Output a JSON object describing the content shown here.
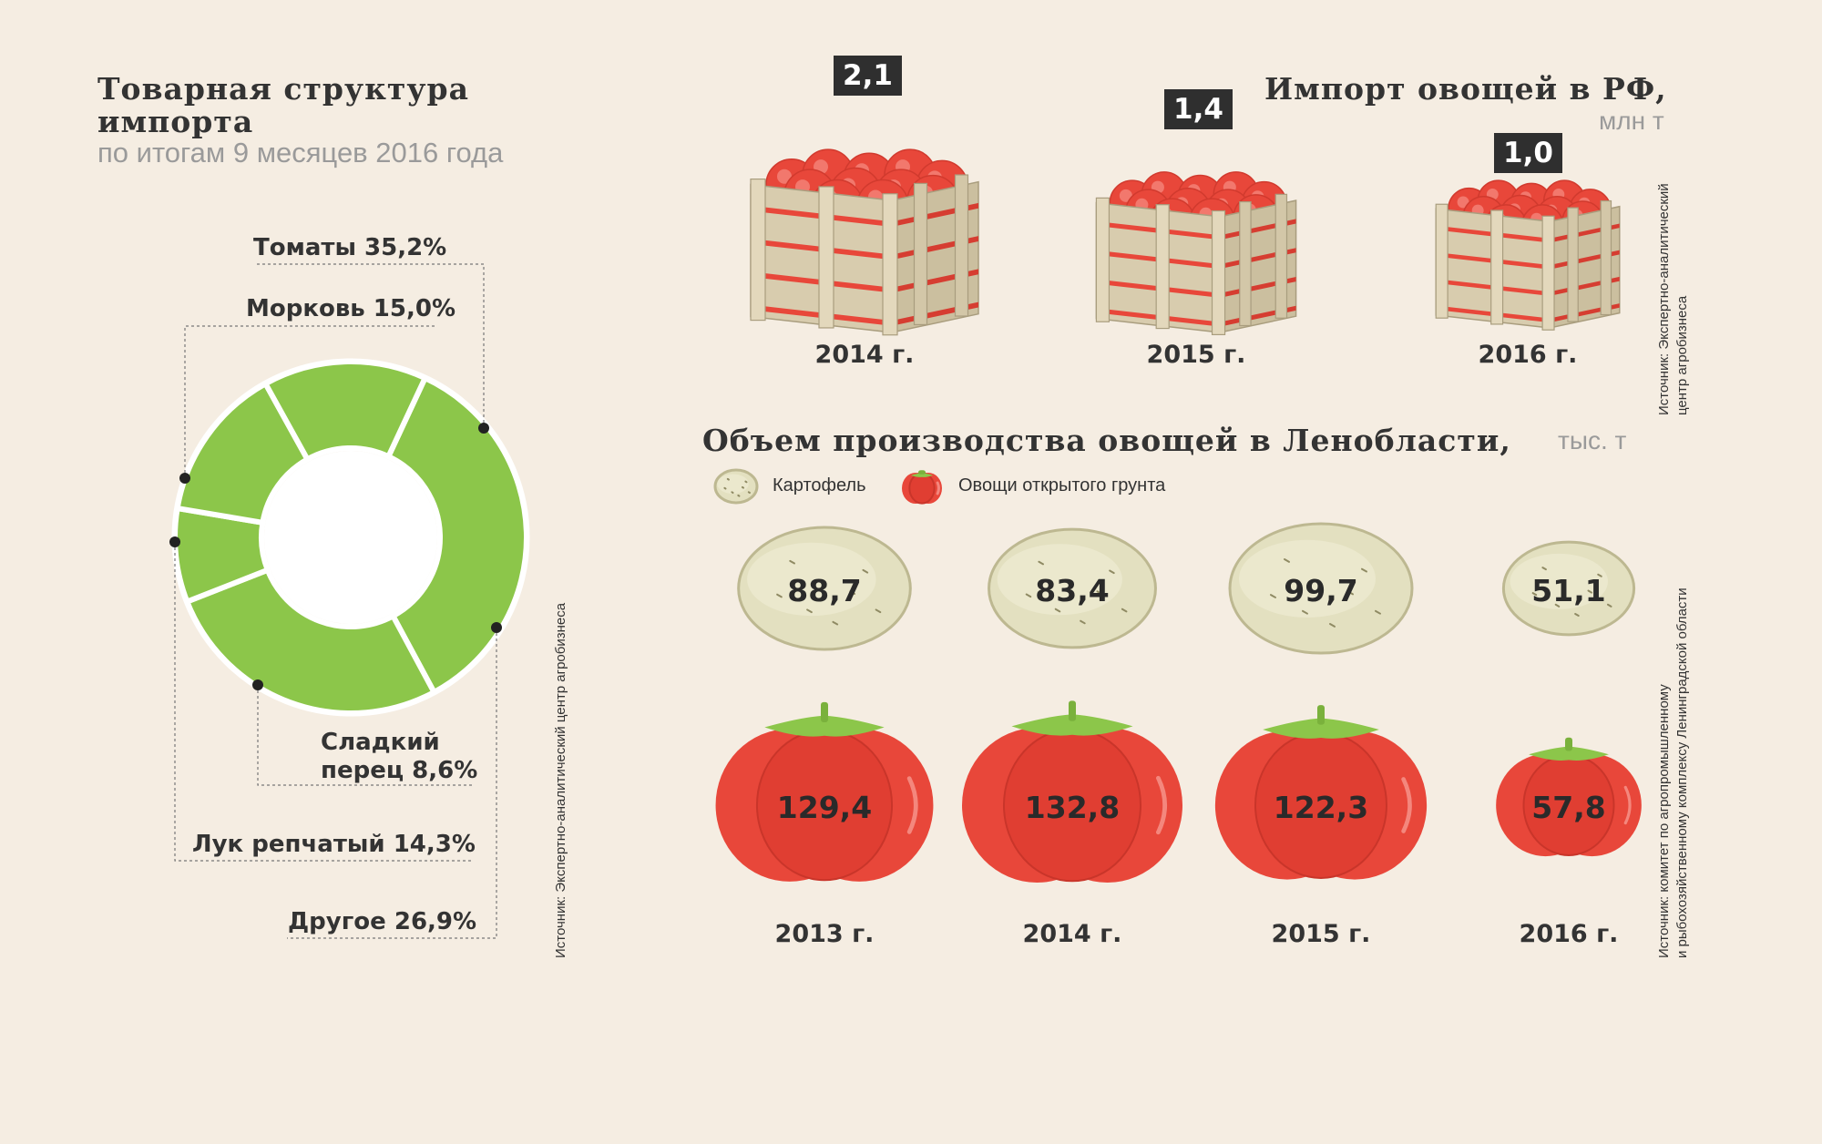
{
  "donut": {
    "title_line1": "Товарная структура",
    "title_line2": "импорта",
    "subtitle": "по итогам 9 месяцев 2016 года",
    "source": "Источник: Экспертно-аналитический центр агробизнеса",
    "color": "#8cc64a"
  },
  "import": {
    "title": "Импорт овощей в РФ,",
    "unit": "млн т",
    "source_line1": "Источник: Экспертно-аналитический",
    "source_line2": "центр агробизнеса"
  },
  "production": {
    "title": "Объем производства овощей в Ленобласти,",
    "unit": "тыс. т",
    "legend_potato": "Картофель",
    "legend_veg": "Овощи открытого грунта",
    "source_line1": "Источник: комитет по агропромышленному",
    "source_line2": "и рыбохозяйственному комплексу Ленинградской области"
  },
  "colors": {
    "tomato": "#e8473a",
    "potato": "#e3e0c0",
    "leaf": "#8cc64a",
    "crate": "#cfc4a8",
    "background": "#f5ede2"
  },
  "chart_data": [
    {
      "type": "pie",
      "title": "Товарная структура импорта",
      "subtitle": "по итогам 9 месяцев 2016 года",
      "labels": [
        "Томаты",
        "Морковь",
        "Сладкий перец",
        "Лук репчатый",
        "Другое"
      ],
      "display": [
        "Томаты 35,2%",
        "Морковь 15,0%",
        "Сладкий перец 8,6%",
        "Лук репчатый 14,3%",
        "Другое 26,9%"
      ],
      "display_pepper_line1": "Сладкий",
      "display_pepper_line2": "перец 8,6%",
      "values": [
        35.2,
        15.0,
        8.6,
        14.3,
        26.9
      ]
    },
    {
      "type": "bar",
      "title": "Импорт овощей в РФ,",
      "unit": "млн т",
      "categories": [
        "2014 г.",
        "2015 г.",
        "2016 г."
      ],
      "values": [
        2.1,
        1.4,
        1.0
      ],
      "value_labels": [
        "2,1",
        "1,4",
        "1,0"
      ]
    },
    {
      "type": "bar",
      "title": "Объем производства овощей в Ленобласти,",
      "unit": "тыс. т",
      "categories": [
        "2013 г.",
        "2014 г.",
        "2015 г.",
        "2016 г."
      ],
      "series": [
        {
          "name": "Картофель",
          "values": [
            88.7,
            83.4,
            99.7,
            51.1
          ],
          "value_labels": [
            "88,7",
            "83,4",
            "99,7",
            "51,1"
          ]
        },
        {
          "name": "Овощи открытого грунта",
          "values": [
            129.4,
            132.8,
            122.3,
            57.8
          ],
          "value_labels": [
            "129,4",
            "132,8",
            "122,3",
            "57,8"
          ]
        }
      ]
    }
  ]
}
